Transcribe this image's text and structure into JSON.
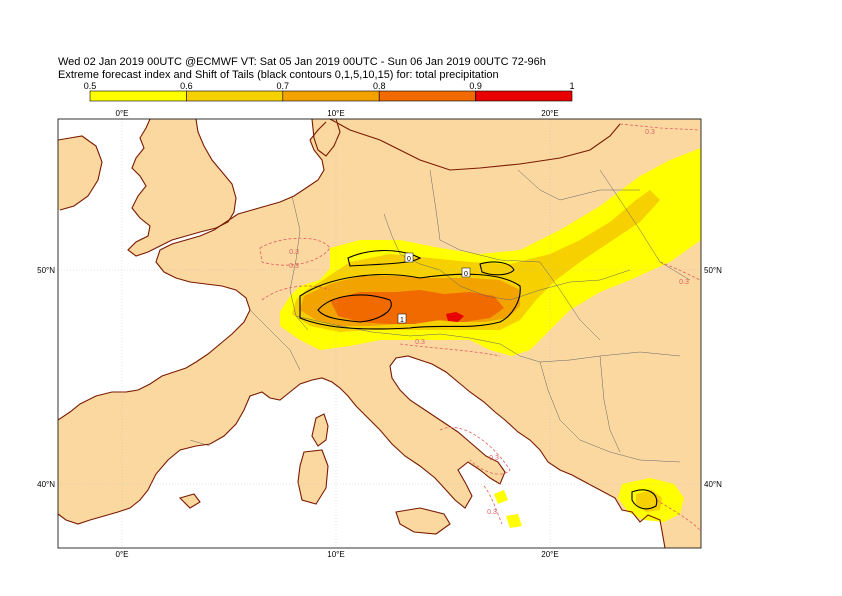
{
  "title": {
    "line1": "Wed 02 Jan 2019 00UTC @ECMWF VT: Sat 05 Jan 2019 00UTC - Sun 06 Jan 2019 00UTC  72-96h",
    "line2": "Extreme forecast index and Shift of Tails (black contours 0,1,5,10,15) for: total precipitation"
  },
  "legend": {
    "labels": [
      "0.5",
      "0.6",
      "0.7",
      "0.8",
      "0.9",
      "1"
    ],
    "colors": [
      "#ffff00",
      "#f6d000",
      "#f2a300",
      "#f06a00",
      "#e80000"
    ]
  },
  "map": {
    "ocean_color": "#ffffff",
    "land_color": "#fad8a0",
    "coast_color": "#7a1a00",
    "border_color": "#666666",
    "efi_dashed_color": "#e06060",
    "top_ticks": [
      "0°E",
      "10°E",
      "20°E"
    ],
    "bottom_ticks": [
      "0°E",
      "10°E",
      "20°E"
    ],
    "left_ticks": [
      "50°N",
      "40°N"
    ],
    "right_ticks": [
      "50°N",
      "40°N"
    ],
    "efi_dashed_labels": [
      "0.3",
      "0.3",
      "0.3",
      "0.3",
      "0.3",
      "0.3",
      "0.3"
    ],
    "sot_labels": [
      "0",
      "0",
      "1"
    ]
  }
}
